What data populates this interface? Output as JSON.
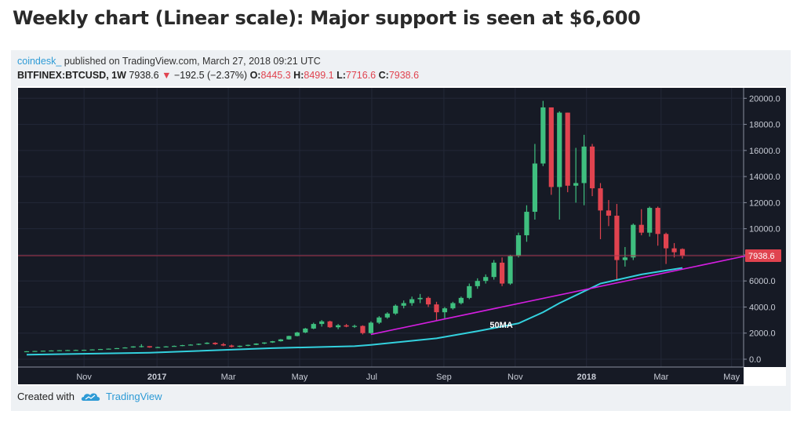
{
  "headline": "Weekly chart (Linear scale): Major support is seen at $6,600",
  "publisher": {
    "author": "coindesk_",
    "text": "published on TradingView.com, March 27, 2018 09:21 UTC"
  },
  "symbol": {
    "name": "BITFINEX:BTCUSD, 1W",
    "last": "7938.6",
    "change": "−192.5 (−2.37%)",
    "o_label": "O:",
    "o": "8445.3",
    "h_label": "H:",
    "h": "8499.1",
    "l_label": "L:",
    "l": "7716.6",
    "c_label": "C:",
    "c": "7938.6"
  },
  "footer": {
    "created_with": "Created with",
    "brand": "TradingView",
    "icon": "tradingview-cloud-icon"
  },
  "colors": {
    "up": "#3fbf7f",
    "down": "#e0434f",
    "ma": "#33d1de",
    "trend": "#d41ee0",
    "bg": "#161a25",
    "price_line": "#a8334a"
  },
  "chart_data": {
    "type": "candlestick",
    "x_ticks": [
      "Nov",
      "2017",
      "Mar",
      "May",
      "Jul",
      "Sep",
      "Nov",
      "2018",
      "Mar",
      "May"
    ],
    "y_ticks": [
      "20000.0",
      "18000.0",
      "16000.0",
      "14000.0",
      "12000.0",
      "10000.0",
      "8000.0",
      "6000.0",
      "4000.0",
      "2000.0",
      "0.0"
    ],
    "ylim": [
      -600,
      20800
    ],
    "last_price": 7938.6,
    "last_price_label": "7938.6",
    "annotation": "50MA",
    "candles": [
      [
        600,
        620,
        570,
        610
      ],
      [
        610,
        640,
        600,
        630
      ],
      [
        630,
        660,
        620,
        650
      ],
      [
        650,
        680,
        640,
        670
      ],
      [
        670,
        700,
        660,
        690
      ],
      [
        690,
        720,
        680,
        700
      ],
      [
        700,
        730,
        690,
        710
      ],
      [
        710,
        730,
        690,
        720
      ],
      [
        720,
        760,
        710,
        750
      ],
      [
        750,
        790,
        740,
        780
      ],
      [
        780,
        820,
        770,
        810
      ],
      [
        810,
        860,
        790,
        850
      ],
      [
        850,
        920,
        840,
        900
      ],
      [
        900,
        1000,
        880,
        980
      ],
      [
        980,
        1150,
        900,
        1000
      ],
      [
        1000,
        1000,
        880,
        900
      ],
      [
        900,
        960,
        880,
        930
      ],
      [
        930,
        1000,
        910,
        980
      ],
      [
        980,
        1050,
        960,
        1020
      ],
      [
        1020,
        1100,
        1000,
        1080
      ],
      [
        1080,
        1150,
        1050,
        1120
      ],
      [
        1120,
        1200,
        1080,
        1180
      ],
      [
        1180,
        1300,
        1150,
        1260
      ],
      [
        1260,
        1300,
        1100,
        1150
      ],
      [
        1150,
        1250,
        1000,
        1050
      ],
      [
        1050,
        1120,
        900,
        950
      ],
      [
        950,
        1050,
        920,
        1030
      ],
      [
        1030,
        1120,
        1000,
        1100
      ],
      [
        1100,
        1220,
        1080,
        1200
      ],
      [
        1200,
        1300,
        1150,
        1280
      ],
      [
        1280,
        1400,
        1250,
        1380
      ],
      [
        1380,
        1550,
        1350,
        1520
      ],
      [
        1520,
        1800,
        1500,
        1780
      ],
      [
        1780,
        2100,
        1750,
        2050
      ],
      [
        2050,
        2400,
        2000,
        2350
      ],
      [
        2350,
        2800,
        2300,
        2700
      ],
      [
        2700,
        3000,
        2500,
        2900
      ],
      [
        2900,
        2950,
        2400,
        2450
      ],
      [
        2450,
        2700,
        2300,
        2600
      ],
      [
        2600,
        2700,
        2450,
        2500
      ],
      [
        2500,
        2650,
        2400,
        2550
      ],
      [
        2550,
        2600,
        1900,
        2000
      ],
      [
        2000,
        2900,
        1950,
        2800
      ],
      [
        2800,
        3300,
        2700,
        3200
      ],
      [
        3200,
        3600,
        3100,
        3500
      ],
      [
        3500,
        4200,
        3400,
        4100
      ],
      [
        4100,
        4500,
        3900,
        4300
      ],
      [
        4300,
        4800,
        4100,
        4600
      ],
      [
        4600,
        5000,
        4300,
        4700
      ],
      [
        4700,
        4800,
        4000,
        4200
      ],
      [
        4200,
        4400,
        3000,
        3600
      ],
      [
        3600,
        4000,
        3100,
        3900
      ],
      [
        3900,
        4400,
        3800,
        4300
      ],
      [
        4300,
        4800,
        4200,
        4700
      ],
      [
        4700,
        5800,
        4600,
        5600
      ],
      [
        5600,
        6200,
        5400,
        6000
      ],
      [
        6000,
        6500,
        5800,
        6300
      ],
      [
        6300,
        7600,
        6100,
        7400
      ],
      [
        7400,
        7800,
        5600,
        5800
      ],
      [
        5800,
        8000,
        5700,
        7900
      ],
      [
        7900,
        9700,
        7800,
        9500
      ],
      [
        9500,
        11800,
        9000,
        11300
      ],
      [
        11300,
        16500,
        10700,
        15000
      ],
      [
        15000,
        19800,
        14800,
        19300
      ],
      [
        19300,
        19300,
        12600,
        13200
      ],
      [
        13200,
        19000,
        10700,
        18900
      ],
      [
        18900,
        18900,
        12800,
        13300
      ],
      [
        13300,
        16200,
        12000,
        13500
      ],
      [
        13500,
        17200,
        11800,
        16300
      ],
      [
        16300,
        16500,
        12500,
        13100
      ],
      [
        13100,
        13500,
        9200,
        11400
      ],
      [
        11400,
        12200,
        10200,
        11000
      ],
      [
        11000,
        11900,
        6000,
        7600
      ],
      [
        7600,
        8600,
        7100,
        7800
      ],
      [
        7800,
        10400,
        7600,
        10300
      ],
      [
        10300,
        11500,
        9500,
        9700
      ],
      [
        9700,
        11700,
        9400,
        11600
      ],
      [
        11600,
        11700,
        8700,
        9600
      ],
      [
        9600,
        9700,
        7300,
        8500
      ],
      [
        8500,
        8900,
        7800,
        8200
      ],
      [
        8445.3,
        8499.1,
        7716.6,
        7938.6
      ]
    ],
    "ma50": [
      [
        0,
        350
      ],
      [
        15,
        500
      ],
      [
        30,
        850
      ],
      [
        40,
        1000
      ],
      [
        42,
        1100
      ],
      [
        50,
        1600
      ],
      [
        55,
        2150
      ],
      [
        60,
        2750
      ],
      [
        63,
        3600
      ],
      [
        65,
        4300
      ],
      [
        70,
        5800
      ],
      [
        75,
        6500
      ],
      [
        78,
        6800
      ],
      [
        80,
        7000
      ]
    ],
    "trendline": [
      [
        42,
        1900
      ],
      [
        80,
        6900
      ]
    ]
  }
}
